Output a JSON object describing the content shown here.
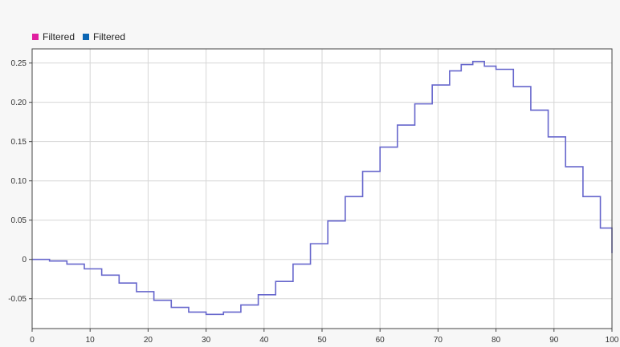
{
  "legend": [
    {
      "label": "Filtered",
      "color": "#e020a0"
    },
    {
      "label": "Filtered",
      "color": "#0b66b4"
    }
  ],
  "chart_data": {
    "type": "line",
    "step": true,
    "title": "",
    "xlabel": "",
    "ylabel": "",
    "xlim": [
      0,
      100
    ],
    "ylim": [
      -0.088,
      0.268
    ],
    "xticks": [
      0,
      10,
      20,
      30,
      40,
      50,
      60,
      70,
      80,
      90,
      100
    ],
    "yticks": [
      -0.05,
      0,
      0.05,
      0.1,
      0.15,
      0.2,
      0.25
    ],
    "ytick_labels": [
      "-0.05",
      "0",
      "0.05",
      "0.10",
      "0.15",
      "0.20",
      "0.25"
    ],
    "grid": true,
    "legend_position": "top-left",
    "series": [
      {
        "name": "Filtered",
        "color": "#6666cc",
        "x": [
          0,
          3,
          6,
          9,
          12,
          15,
          18,
          21,
          24,
          27,
          30,
          33,
          36,
          39,
          42,
          45,
          48,
          51,
          54,
          57,
          60,
          63,
          66,
          69,
          72,
          74,
          76,
          78,
          80,
          83,
          86,
          89,
          92,
          95,
          98,
          100
        ],
        "y": [
          0,
          -0.002,
          -0.006,
          -0.012,
          -0.02,
          -0.03,
          -0.041,
          -0.052,
          -0.061,
          -0.067,
          -0.07,
          -0.067,
          -0.058,
          -0.045,
          -0.028,
          -0.006,
          0.02,
          0.049,
          0.08,
          0.112,
          0.143,
          0.171,
          0.198,
          0.222,
          0.24,
          0.248,
          0.252,
          0.246,
          0.242,
          0.22,
          0.19,
          0.156,
          0.118,
          0.08,
          0.04,
          0.008
        ]
      }
    ]
  }
}
